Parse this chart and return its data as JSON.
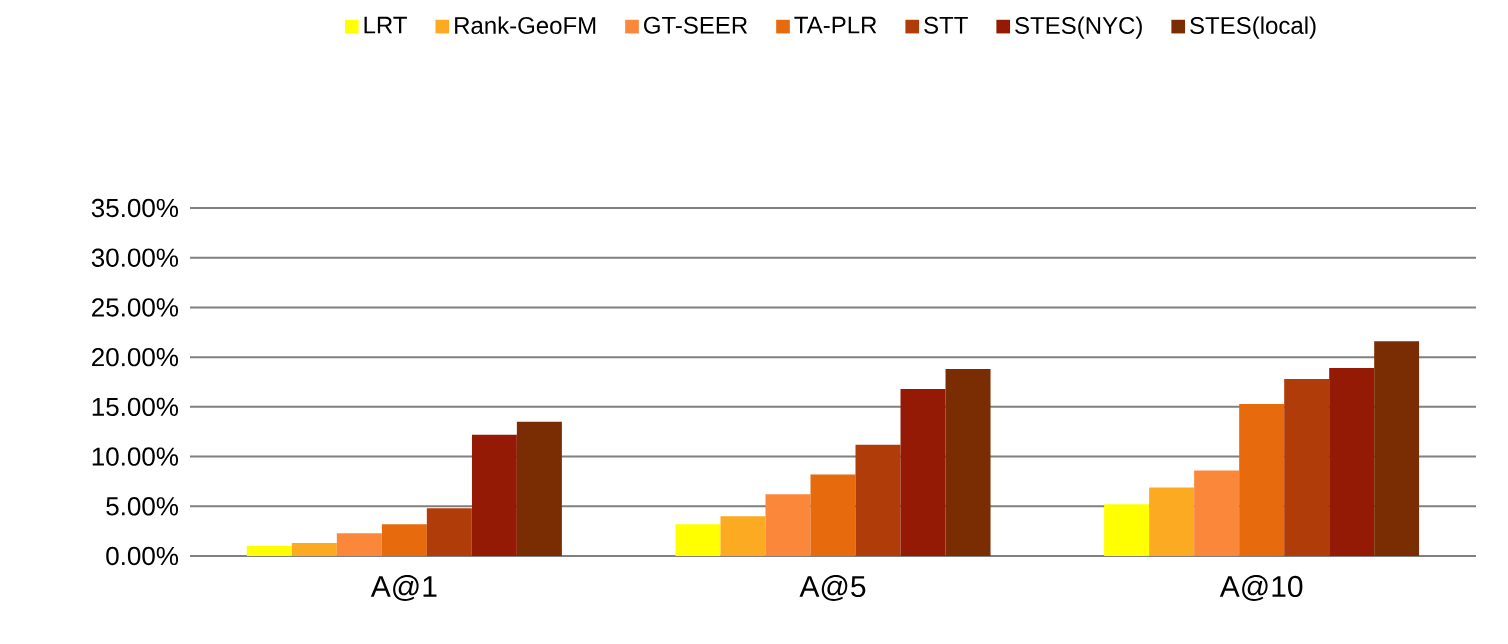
{
  "chart_data": {
    "type": "bar",
    "categories": [
      "A@1",
      "A@5",
      "A@10"
    ],
    "series": [
      {
        "name": "LRT",
        "color": "#ffff00",
        "values": [
          1.0,
          3.2,
          5.2
        ]
      },
      {
        "name": "Rank-GeoFM",
        "color": "#fbaa21",
        "values": [
          1.3,
          4.0,
          6.9
        ]
      },
      {
        "name": "GT-SEER",
        "color": "#fb873b",
        "values": [
          2.3,
          6.2,
          8.6
        ]
      },
      {
        "name": "TA-PLR",
        "color": "#e76b0c",
        "values": [
          3.2,
          8.2,
          15.3
        ]
      },
      {
        "name": "STT",
        "color": "#b03c0a",
        "values": [
          4.8,
          11.2,
          17.8
        ]
      },
      {
        "name": "STES(NYC)",
        "color": "#951a05",
        "values": [
          12.2,
          16.8,
          18.9
        ]
      },
      {
        "name": "STES(local)",
        "color": "#7a2c02",
        "values": [
          13.5,
          18.8,
          21.6
        ]
      }
    ],
    "ylim": [
      0,
      35
    ],
    "yticks": [
      {
        "value": 0,
        "label": "0.00%"
      },
      {
        "value": 5,
        "label": "5.00%"
      },
      {
        "value": 10,
        "label": "10.00%"
      },
      {
        "value": 15,
        "label": "15.00%"
      },
      {
        "value": 20,
        "label": "20.00%"
      },
      {
        "value": 25,
        "label": "25.00%"
      },
      {
        "value": 30,
        "label": "30.00%"
      },
      {
        "value": 35,
        "label": "35.00%"
      }
    ],
    "grid": "y",
    "legend": "top"
  }
}
